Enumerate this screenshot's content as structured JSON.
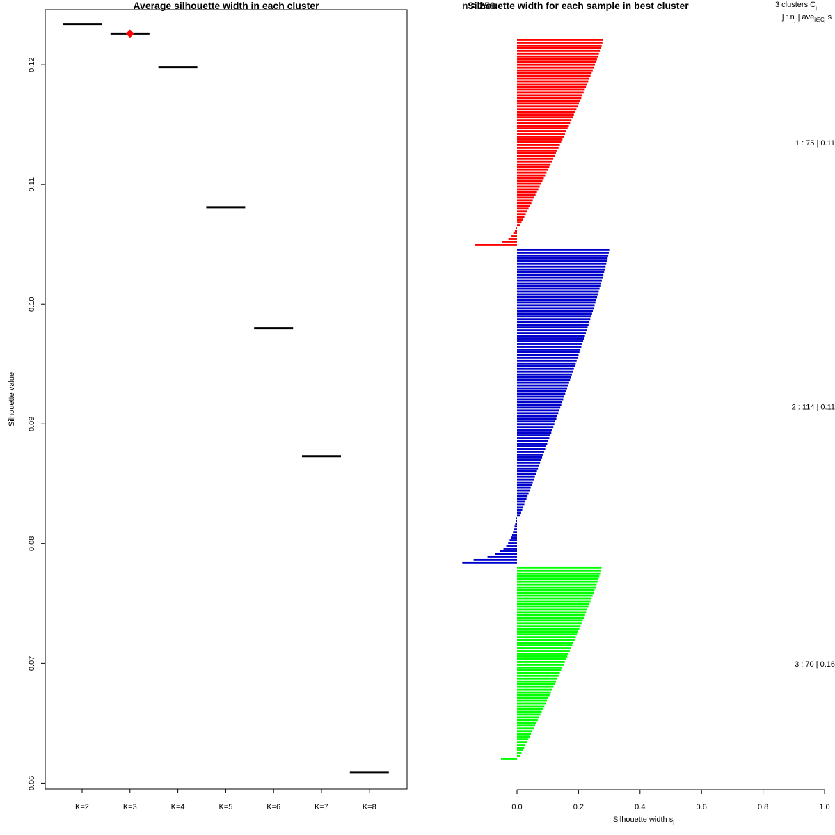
{
  "chart_data": [
    {
      "type": "scatter",
      "title": "Average silhouette width in each cluster",
      "xlabel": "",
      "ylabel": "Silhouette value",
      "categories": [
        "K=2",
        "K=3",
        "K=4",
        "K=5",
        "K=6",
        "K=7",
        "K=8"
      ],
      "values": [
        0.1234,
        0.1226,
        0.1198,
        0.1081,
        0.098,
        0.0873,
        0.0609
      ],
      "highlight_index": 1,
      "highlight_color": "#ff0000",
      "yticks": [
        "0.06",
        "0.07",
        "0.08",
        "0.09",
        "0.10",
        "0.11",
        "0.12"
      ],
      "ylim": [
        0.0595,
        0.1246
      ],
      "grid": false
    },
    {
      "type": "bar",
      "title": "Silhouette width for each sample in best cluster",
      "title_overlap": "n = 259",
      "xlabel": "Silhouette width s",
      "xlabel_sub": "i",
      "xticks": [
        "0.0",
        "0.2",
        "0.4",
        "0.6",
        "0.8",
        "1.0"
      ],
      "xlim": [
        0,
        1
      ],
      "legend_header": {
        "line1": "3 clusters C",
        "line1_sub": "j",
        "line2": "j : n",
        "line2_sub": "j",
        "line2_mid": " | ave",
        "line2_sub2": "i∈Cj",
        "line2_end": " s"
      },
      "series": [
        {
          "name": "Cluster 1",
          "color": "#ff0000",
          "label": "1 :  75  |  0.11",
          "n": 75,
          "positive_max": 0.28,
          "positive_min": 0.01,
          "negatives": [
            -0.003,
            -0.007,
            -0.012,
            -0.018,
            -0.028,
            -0.048,
            -0.138
          ]
        },
        {
          "name": "Cluster 2",
          "color": "#0000cc",
          "label": "2 :  114  |  0.11",
          "n": 114,
          "positive_max": 0.3,
          "positive_min": 0.01,
          "negatives": [
            -0.002,
            -0.004,
            -0.006,
            -0.008,
            -0.011,
            -0.013,
            -0.016,
            -0.02,
            -0.024,
            -0.029,
            -0.035,
            -0.044,
            -0.056,
            -0.072,
            -0.096,
            -0.141,
            -0.178
          ]
        },
        {
          "name": "Cluster 3",
          "color": "#00ff00",
          "label": "3 :  70  |  0.16",
          "n": 70,
          "positive_max": 0.275,
          "positive_min": 0.01,
          "negatives": [
            -0.052
          ]
        }
      ]
    }
  ]
}
